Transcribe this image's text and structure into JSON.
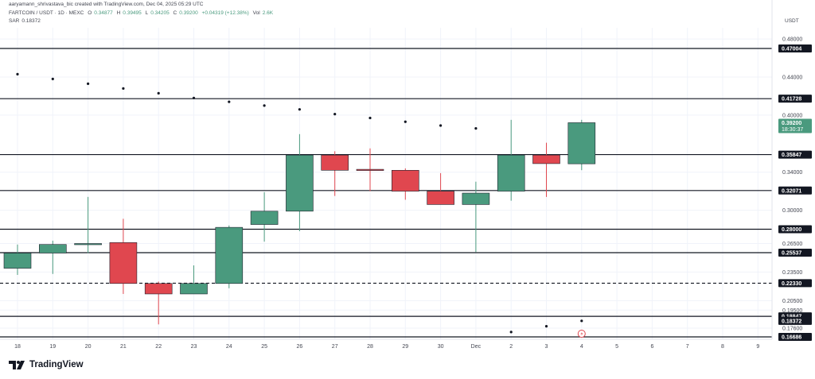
{
  "header": {
    "credit": "aaryamann_shrivastava_bic created with TradingView.com, Dec 04, 2025 05:29 UTC",
    "symbol": "FARTCOIN / USDT · 1D · MEXC",
    "o_label": "O",
    "o_value": "0.34877",
    "h_label": "H",
    "h_value": "0.39495",
    "l_label": "L",
    "l_value": "0.34205",
    "c_label": "C",
    "c_value": "0.39200",
    "change": "+0.04319 (+12.38%)",
    "vol_label": "Vol",
    "vol_value": "2.6K",
    "sar_label": "SAR",
    "sar_value": "0.18372"
  },
  "currency": "USDT",
  "last_price": {
    "value": "0.39200",
    "countdown": "18:30:37"
  },
  "brand": {
    "name": "TradingView"
  },
  "colors": {
    "up": "#4a9a7e",
    "down": "#e0474f",
    "sar": "#131722",
    "line": "#131722",
    "grid": "#f0f3fa",
    "axis_text": "#434651",
    "tag_bg": "#131722",
    "last_price_bg": "#4a9a7e"
  },
  "chart_data": {
    "type": "candlestick",
    "x_ticks": [
      "18",
      "19",
      "20",
      "21",
      "22",
      "23",
      "24",
      "25",
      "26",
      "27",
      "28",
      "29",
      "30",
      "Dec",
      "2",
      "3",
      "4",
      "5",
      "6",
      "7",
      "8",
      "9"
    ],
    "candles": [
      {
        "x": "18",
        "open": 0.239,
        "high": 0.264,
        "low": 0.232,
        "close": 0.255
      },
      {
        "x": "19",
        "open": 0.255,
        "high": 0.268,
        "low": 0.233,
        "close": 0.264
      },
      {
        "x": "20",
        "open": 0.265,
        "high": 0.314,
        "low": 0.255,
        "close": 0.265
      },
      {
        "x": "21",
        "open": 0.266,
        "high": 0.291,
        "low": 0.212,
        "close": 0.223
      },
      {
        "x": "22",
        "open": 0.223,
        "high": 0.225,
        "low": 0.18,
        "close": 0.212
      },
      {
        "x": "23",
        "open": 0.212,
        "high": 0.242,
        "low": 0.212,
        "close": 0.223
      },
      {
        "x": "24",
        "open": 0.223,
        "high": 0.284,
        "low": 0.218,
        "close": 0.282
      },
      {
        "x": "25",
        "open": 0.285,
        "high": 0.319,
        "low": 0.267,
        "close": 0.299
      },
      {
        "x": "26",
        "open": 0.299,
        "high": 0.38,
        "low": 0.278,
        "close": 0.358
      },
      {
        "x": "27",
        "open": 0.358,
        "high": 0.362,
        "low": 0.315,
        "close": 0.342
      },
      {
        "x": "28",
        "open": 0.343,
        "high": 0.365,
        "low": 0.32,
        "close": 0.342
      },
      {
        "x": "29",
        "open": 0.342,
        "high": 0.344,
        "low": 0.311,
        "close": 0.32
      },
      {
        "x": "30",
        "open": 0.32,
        "high": 0.339,
        "low": 0.306,
        "close": 0.306
      },
      {
        "x": "Dec",
        "open": 0.306,
        "high": 0.33,
        "low": 0.256,
        "close": 0.318
      },
      {
        "x": "2",
        "open": 0.32,
        "high": 0.395,
        "low": 0.31,
        "close": 0.358
      },
      {
        "x": "3",
        "open": 0.358,
        "high": 0.371,
        "low": 0.314,
        "close": 0.349
      },
      {
        "x": "4",
        "open": 0.3488,
        "high": 0.395,
        "low": 0.3421,
        "close": 0.392
      }
    ],
    "sar": [
      {
        "x": "18",
        "value": 0.443
      },
      {
        "x": "19",
        "value": 0.438
      },
      {
        "x": "20",
        "value": 0.433
      },
      {
        "x": "21",
        "value": 0.428
      },
      {
        "x": "22",
        "value": 0.423
      },
      {
        "x": "23",
        "value": 0.418
      },
      {
        "x": "24",
        "value": 0.414
      },
      {
        "x": "25",
        "value": 0.41
      },
      {
        "x": "26",
        "value": 0.406
      },
      {
        "x": "27",
        "value": 0.401
      },
      {
        "x": "28",
        "value": 0.397
      },
      {
        "x": "29",
        "value": 0.393
      },
      {
        "x": "30",
        "value": 0.389
      },
      {
        "x": "Dec",
        "value": 0.386
      },
      {
        "x": "2",
        "value": 0.172
      },
      {
        "x": "3",
        "value": 0.178
      },
      {
        "x": "4",
        "value": 0.1837
      }
    ],
    "y_ticks": [
      {
        "value": 0.48,
        "label": "0.48000"
      },
      {
        "value": 0.44,
        "label": "0.44000"
      },
      {
        "value": 0.4,
        "label": "0.40000"
      },
      {
        "value": 0.34,
        "label": "0.34000"
      },
      {
        "value": 0.3,
        "label": "0.30000"
      },
      {
        "value": 0.265,
        "label": "0.26500"
      },
      {
        "value": 0.235,
        "label": "0.23500"
      },
      {
        "value": 0.205,
        "label": "0.20500"
      },
      {
        "value": 0.195,
        "label": "0.19500"
      },
      {
        "value": 0.176,
        "label": "0.17600"
      }
    ],
    "levels": [
      {
        "value": 0.47004,
        "label": "0.47004",
        "style": "solid"
      },
      {
        "value": 0.41728,
        "label": "0.41728",
        "style": "solid"
      },
      {
        "value": 0.35847,
        "label": "0.35847",
        "style": "solid"
      },
      {
        "value": 0.32071,
        "label": "0.32071",
        "style": "solid"
      },
      {
        "value": 0.28,
        "label": "0.28000",
        "style": "solid"
      },
      {
        "value": 0.25537,
        "label": "0.25537",
        "style": "solid"
      },
      {
        "value": 0.2233,
        "label": "0.22330",
        "style": "dashed"
      },
      {
        "value": 0.18847,
        "label": "0.18847",
        "style": "solid"
      },
      {
        "value": 0.16686,
        "label": "0.16686",
        "style": "solid"
      }
    ],
    "sar_label": {
      "value": 0.18372,
      "label": "0.18372"
    }
  }
}
